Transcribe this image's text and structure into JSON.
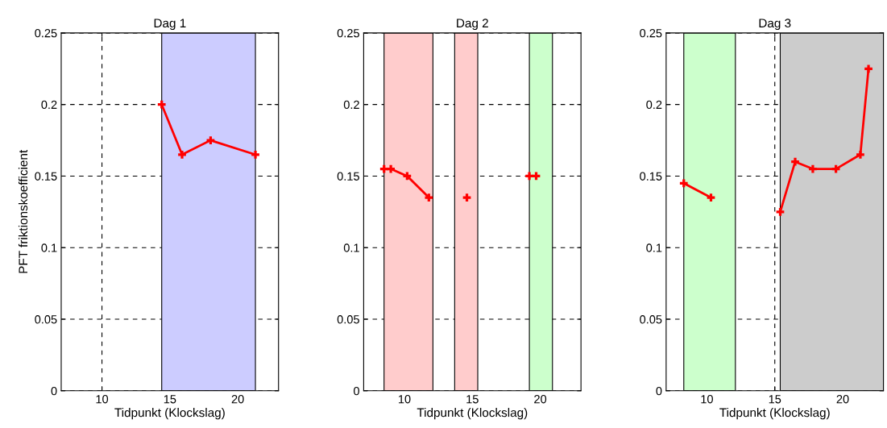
{
  "chart_data": [
    {
      "type": "line",
      "title": "Dag 1",
      "xlabel": "Tidpunkt (Klockslag)",
      "ylabel": "PFT friktionskoefficient",
      "xlim": [
        7,
        23
      ],
      "xticks": [
        10,
        15,
        20
      ],
      "ylim": [
        0,
        0.25
      ],
      "yticks": [
        0,
        0.05,
        0.1,
        0.15,
        0.2,
        0.25
      ],
      "grid": true,
      "marker": "cross",
      "line_style": "solid",
      "series": [
        {
          "color": "#ff0000",
          "x": [
            14.4,
            15.9,
            18.0,
            21.3
          ],
          "values": [
            0.2,
            0.165,
            0.175,
            0.165
          ]
        }
      ],
      "bands": [
        {
          "axis": "x",
          "from": 14.4,
          "to": 21.3,
          "color": "#ccccff"
        }
      ]
    },
    {
      "type": "line",
      "title": "Dag 2",
      "xlabel": "Tidpunkt (Klockslag)",
      "xlim": [
        7,
        23
      ],
      "xticks": [
        10,
        15,
        20
      ],
      "ylim": [
        0,
        0.25
      ],
      "yticks": [
        0,
        0.05,
        0.1,
        0.15,
        0.2,
        0.25
      ],
      "grid": true,
      "marker": "cross",
      "line_style": "solid",
      "series": [
        {
          "color": "#ff0000",
          "x": [
            8.5,
            9.0,
            10.2,
            11.8
          ],
          "values": [
            0.155,
            0.155,
            0.15,
            0.135
          ]
        },
        {
          "color": "#ff0000",
          "x": [
            14.6
          ],
          "values": [
            0.135
          ]
        },
        {
          "color": "#ff0000",
          "x": [
            19.2
          ],
          "values": [
            0.15
          ]
        },
        {
          "color": "#ff0000",
          "x": [
            19.7
          ],
          "values": [
            0.15
          ]
        }
      ],
      "bands": [
        {
          "axis": "x",
          "from": 8.5,
          "to": 12.1,
          "color": "#ffcccc"
        },
        {
          "axis": "x",
          "from": 13.7,
          "to": 15.4,
          "color": "#ffcccc"
        },
        {
          "axis": "x",
          "from": 19.2,
          "to": 20.9,
          "color": "#ccffcc"
        }
      ]
    },
    {
      "type": "line",
      "title": "Dag 3",
      "xlabel": "Tidpunkt (Klockslag)",
      "xlim": [
        7,
        23
      ],
      "xticks": [
        10,
        15,
        20
      ],
      "ylim": [
        0,
        0.25
      ],
      "yticks": [
        0,
        0.05,
        0.1,
        0.15,
        0.2,
        0.25
      ],
      "grid": true,
      "marker": "cross",
      "line_style": "solid",
      "series": [
        {
          "color": "#ff0000",
          "x": [
            8.3,
            10.3
          ],
          "values": [
            0.145,
            0.135
          ]
        },
        {
          "color": "#ff0000",
          "x": [
            15.4,
            16.5,
            17.8,
            19.5,
            21.3,
            21.9
          ],
          "values": [
            0.125,
            0.16,
            0.155,
            0.155,
            0.165,
            0.225
          ]
        }
      ],
      "bands": [
        {
          "axis": "x",
          "from": 8.3,
          "to": 12.1,
          "color": "#ccffcc"
        },
        {
          "axis": "x",
          "from": 15.4,
          "to": 23,
          "color": "#cccccc"
        }
      ]
    }
  ]
}
